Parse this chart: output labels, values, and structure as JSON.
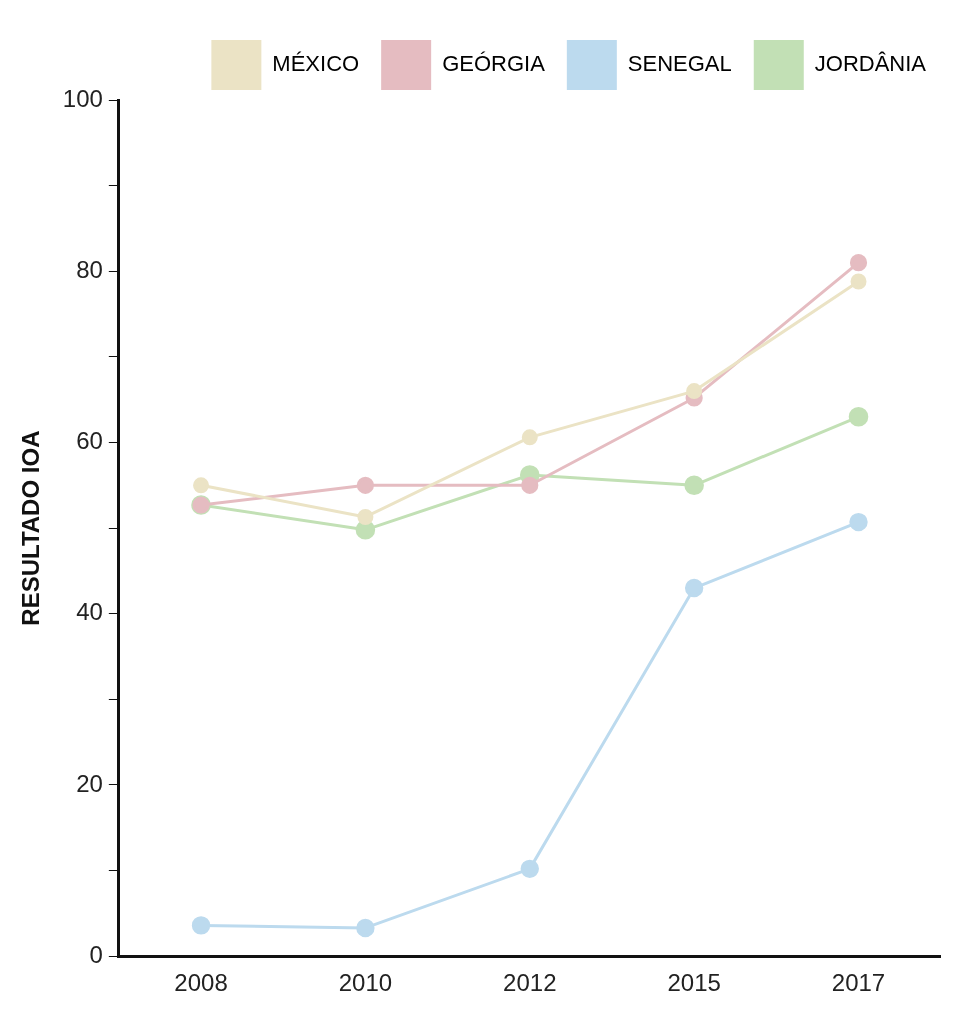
{
  "chart_data": {
    "type": "line",
    "ylabel": "RESULTADO IOA",
    "categories": [
      "2008",
      "2010",
      "2012",
      "2015",
      "2017"
    ],
    "series": [
      {
        "name": "MÉXICO",
        "color": "#ebe3c5",
        "values": [
          55,
          51.3,
          60.6,
          66,
          78.8
        ]
      },
      {
        "name": "GEÓRGIA",
        "color": "#e5bcc1",
        "values": [
          52.7,
          55,
          55,
          65.2,
          81
        ]
      },
      {
        "name": "SENEGAL",
        "color": "#bcdaee",
        "values": [
          3.6,
          3.3,
          10.2,
          43,
          50.7
        ]
      },
      {
        "name": "JORDÂNIA",
        "color": "#c2e0b5",
        "values": [
          52.7,
          49.8,
          56.2,
          55,
          63
        ]
      }
    ],
    "ylim": [
      0,
      100
    ],
    "yticks": [
      0,
      {
        "value": 10,
        "label": null
      },
      20,
      {
        "value": 30,
        "label": null
      },
      40,
      {
        "value": 50,
        "label": null
      },
      60,
      {
        "value": 70,
        "label": null
      },
      80,
      {
        "value": 90,
        "label": null
      },
      100
    ],
    "grid": false,
    "legend": "top right",
    "marker": "circle",
    "line_style": "solid"
  }
}
